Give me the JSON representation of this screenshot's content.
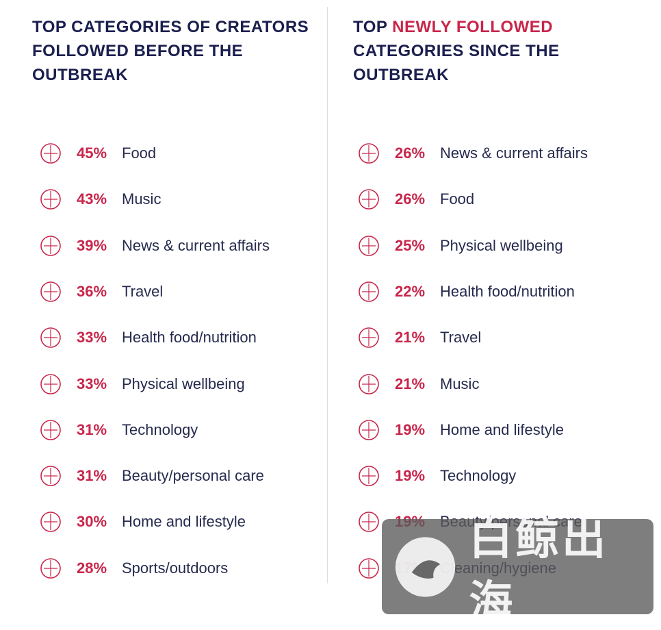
{
  "left": {
    "title": [
      "TOP CATEGORIES OF CREATORS",
      "FOLLOWED BEFORE THE",
      "OUTBREAK"
    ],
    "items": [
      {
        "percent": "45%",
        "label": "Food"
      },
      {
        "percent": "43%",
        "label": "Music"
      },
      {
        "percent": "39%",
        "label": "News & current affairs"
      },
      {
        "percent": "36%",
        "label": "Travel"
      },
      {
        "percent": "33%",
        "label": "Health food/nutrition"
      },
      {
        "percent": "33%",
        "label": "Physical wellbeing"
      },
      {
        "percent": "31%",
        "label": "Technology"
      },
      {
        "percent": "31%",
        "label": "Beauty/personal care"
      },
      {
        "percent": "30%",
        "label": "Home and lifestyle"
      },
      {
        "percent": "28%",
        "label": "Sports/outdoors"
      }
    ]
  },
  "right": {
    "title": {
      "prefix": "TOP",
      "highlight": "NEWLY FOLLOWED",
      "lines": [
        "CATEGORIES SINCE THE",
        "OUTBREAK"
      ]
    },
    "items": [
      {
        "percent": "26%",
        "label": "News & current affairs"
      },
      {
        "percent": "26%",
        "label": "Food"
      },
      {
        "percent": "25%",
        "label": "Physical wellbeing"
      },
      {
        "percent": "22%",
        "label": "Health food/nutrition"
      },
      {
        "percent": "21%",
        "label": "Travel"
      },
      {
        "percent": "21%",
        "label": "Music"
      },
      {
        "percent": "19%",
        "label": "Home and lifestyle"
      },
      {
        "percent": "19%",
        "label": "Technology"
      },
      {
        "percent": "19%",
        "label": "Beauty/personal care"
      },
      {
        "percent": "17%",
        "label": "Cleaning/hygiene"
      }
    ]
  },
  "watermark": "白鲸出海"
}
